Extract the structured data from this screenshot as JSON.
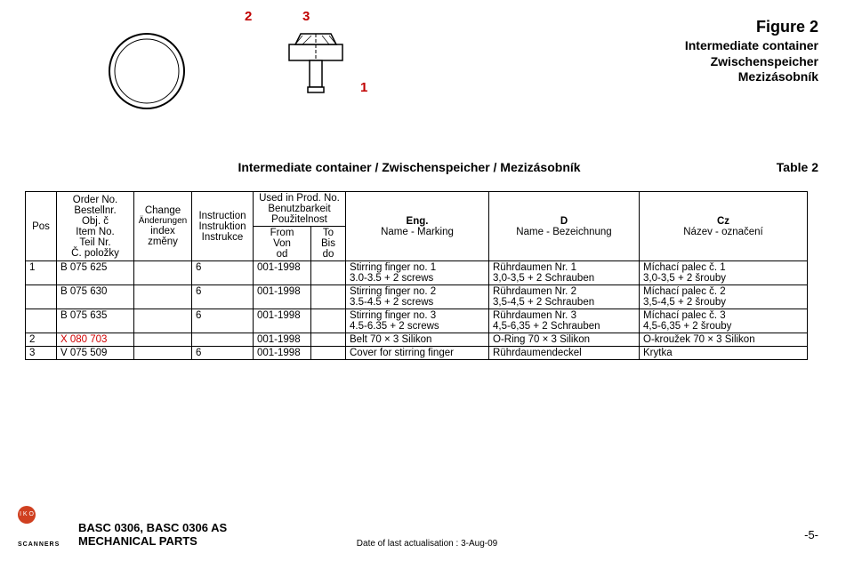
{
  "callouts": {
    "n1": "1",
    "n2": "2",
    "n3": "3"
  },
  "figure": {
    "title": "Figure  2",
    "sub1": "Intermediate container",
    "sub2": "Zwischenspeicher",
    "sub3": "Mezizásobník"
  },
  "table_caption": {
    "main": "Intermediate container  / Zwischenspeicher / Mezizásobník",
    "right": "Table  2"
  },
  "headers": {
    "pos": "Pos",
    "item": {
      "l1": "Order No.",
      "l2": "Bestellnr.",
      "l3": "Obj. č",
      "l4": "Item No.",
      "l5": "Teil Nr.",
      "l6": "Č. položky"
    },
    "chg": {
      "l1": "Change",
      "l2": "Änderungen",
      "l3": "index",
      "l4": "změny"
    },
    "instr": {
      "l1": "Instruction",
      "l2": "Instruktion",
      "l3": "Instrukce"
    },
    "used": {
      "l1": "Used in Prod. No.",
      "l2": "Benutzbarkeit",
      "l3": "Použitelnost"
    },
    "from": {
      "l1": "From",
      "l2": "Von",
      "l3": "od"
    },
    "to": {
      "l1": "To",
      "l2": "Bis",
      "l3": "do"
    },
    "eng": {
      "l1": "Eng.",
      "l2": "Name - Marking"
    },
    "d": {
      "l1": "D",
      "l2": "Name - Bezeichnung"
    },
    "cz": {
      "l1": "Cz",
      "l2": "Název - označení"
    }
  },
  "rows": [
    {
      "pos": "1",
      "item": "B 075 625",
      "chg": "",
      "instr": "6",
      "from": "001-1998",
      "to": "",
      "eng": "Stirring finger no. 1\n3.0-3.5  + 2 screws",
      "d": "Rührdaumen Nr. 1\n3,0-3,5  + 2 Schrauben",
      "cz": "Míchací palec č. 1\n3,0-3,5  + 2 šrouby",
      "red": false
    },
    {
      "pos": "",
      "item": "B 075 630",
      "chg": "",
      "instr": "6",
      "from": "001-1998",
      "to": "",
      "eng": "Stirring finger no. 2\n3.5-4.5  + 2 screws",
      "d": "Rührdaumen Nr. 2\n3,5-4,5  + 2 Schrauben",
      "cz": "Míchací palec č. 2\n3,5-4,5  + 2 šrouby",
      "red": false
    },
    {
      "pos": "",
      "item": "B 075 635",
      "chg": "",
      "instr": "6",
      "from": "001-1998",
      "to": "",
      "eng": "Stirring finger no. 3\n4.5-6.35  + 2 screws",
      "d": "Rührdaumen Nr. 3\n4,5-6,35  + 2 Schrauben",
      "cz": "Míchací palec č. 3\n4,5-6,35  + 2 šrouby",
      "red": false
    },
    {
      "pos": "2",
      "item": "X 080 703",
      "chg": "",
      "instr": "",
      "from": "001-1998",
      "to": "",
      "eng": "Belt 70 × 3 Silikon",
      "d": "O-Ring 70 × 3 Silikon",
      "cz": "O-kroužek 70 × 3 Silikon",
      "red": true
    },
    {
      "pos": "3",
      "item": "V 075 509",
      "chg": "",
      "instr": "6",
      "from": "001-1998",
      "to": "",
      "eng": "Cover for stirring finger",
      "d": "Rührdaumendeckel",
      "cz": "Krytka",
      "red": false
    }
  ],
  "footer": {
    "left1": "BASC 0306, BASC 0306 AS",
    "left2": "MECHANICAL PARTS",
    "center": "Date of last actualisation :  3-Aug-09",
    "right": "-5-",
    "logo_letters": "I K O R",
    "logo_text": "SCANNERS"
  },
  "colors": {
    "red": "#d00000",
    "black": "#000000",
    "logo_bg": "#d04020"
  }
}
